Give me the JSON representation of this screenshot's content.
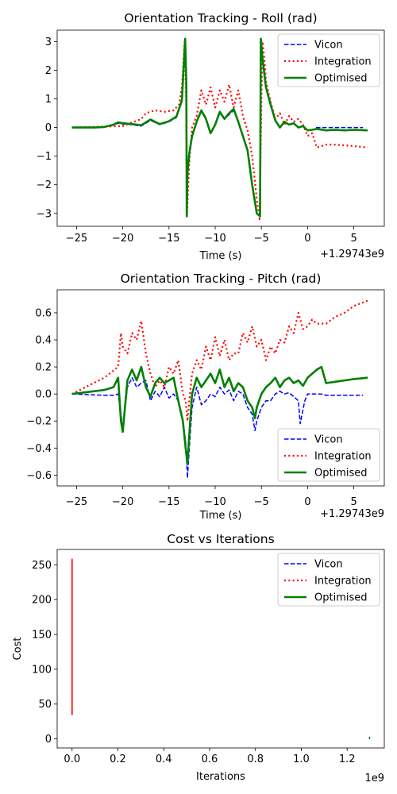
{
  "chart_data": [
    {
      "type": "line",
      "title": "Orientation Tracking - Roll (rad)",
      "xlabel": "Time (s)",
      "ylabel": "",
      "offset_text": "+1.29743e9",
      "xlim": [
        -27.1,
        8.3
      ],
      "ylim": [
        -3.45,
        3.4
      ],
      "xticks": [
        -25,
        -20,
        -15,
        -10,
        -5,
        0,
        5
      ],
      "xtick_labels": [
        "−25",
        "−20",
        "−15",
        "−10",
        "−5",
        "0",
        "5"
      ],
      "yticks": [
        -3,
        -2,
        -1,
        0,
        1,
        2,
        3
      ],
      "ytick_labels": [
        "−3",
        "−2",
        "−1",
        "0",
        "1",
        "2",
        "3"
      ],
      "legend_position": "top-right",
      "series": [
        {
          "name": "Vicon",
          "color": "#0000ff",
          "style": "dashed",
          "x": [
            -25.5,
            -23,
            -22,
            -21,
            -20.5,
            -20,
            -19,
            -18,
            -17,
            -16,
            -15,
            -14.2,
            -13.6,
            -13.25,
            -13.12,
            -13.08,
            -13.0,
            -12.8,
            -12.5,
            -12,
            -11.5,
            -11,
            -10.5,
            -10,
            -9.5,
            -9,
            -8.5,
            -8,
            -7.5,
            -7,
            -6.5,
            -6,
            -5.5,
            -5.15,
            -5.06,
            -5.0,
            -4.8,
            -4.5,
            -4,
            -3.5,
            -3,
            -2.5,
            -2,
            -1.5,
            -1,
            -0.5,
            0,
            0.5,
            1,
            2,
            3,
            4,
            5,
            6
          ],
          "y": [
            0,
            0,
            0.02,
            0.08,
            0.15,
            0.12,
            0.1,
            0.05,
            0.25,
            0.1,
            0.2,
            0.35,
            0.9,
            3.05,
            1.5,
            -3.1,
            -1.6,
            -0.9,
            -0.3,
            0.2,
            0.55,
            0.3,
            -0.2,
            0.1,
            0.5,
            0.3,
            0.45,
            0.6,
            0.2,
            -0.3,
            -0.8,
            -2.0,
            -3.0,
            -3.1,
            3.1,
            2.8,
            2.2,
            1.4,
            0.8,
            0.25,
            0.0,
            0.2,
            0.1,
            0.15,
            0.0,
            0.05,
            -0.1,
            -0.08,
            0.0,
            0.0,
            0.0,
            0.0,
            0.0,
            0.0
          ]
        },
        {
          "name": "Integration",
          "color": "#ff0000",
          "style": "dotted",
          "x": [
            -25.5,
            -20,
            -18,
            -17.5,
            -16.5,
            -15.5,
            -14.5,
            -13.9,
            -13.6,
            -13.3,
            -13.15,
            -13.05,
            -12.8,
            -12.5,
            -12,
            -11.5,
            -11,
            -10.5,
            -10,
            -9.5,
            -9,
            -8.5,
            -8,
            -7.5,
            -7,
            -6.5,
            -6,
            -5.5,
            -5.2,
            -4.9,
            -4.7,
            -4.5,
            -4,
            -3.5,
            -3,
            -2.5,
            -2,
            -1.5,
            -1,
            -0.5,
            0,
            0.5,
            1,
            2,
            3,
            4,
            5,
            6.5
          ],
          "y": [
            0,
            0.05,
            0.3,
            0.5,
            0.6,
            0.55,
            0.6,
            0.8,
            1.4,
            3.0,
            1.0,
            -3.05,
            -1.2,
            0.0,
            0.4,
            1.3,
            0.8,
            1.4,
            0.7,
            1.3,
            0.9,
            1.5,
            0.7,
            1.3,
            0.4,
            -0.1,
            -1.0,
            -2.5,
            -3.2,
            3.0,
            2.5,
            1.6,
            0.9,
            0.3,
            0.5,
            0.1,
            0.4,
            0.2,
            0.3,
            0.1,
            -0.3,
            -0.2,
            -0.7,
            -0.6,
            -0.6,
            -0.62,
            -0.65,
            -0.7
          ]
        },
        {
          "name": "Optimised",
          "color": "#008000",
          "style": "solid",
          "x": [
            -25.5,
            -23,
            -22,
            -21,
            -20.5,
            -20,
            -19,
            -18,
            -17,
            -16,
            -15,
            -14.2,
            -13.6,
            -13.25,
            -13.12,
            -13.08,
            -13.0,
            -12.8,
            -12.5,
            -12,
            -11.5,
            -11,
            -10.5,
            -10,
            -9.5,
            -9,
            -8.5,
            -8,
            -7.5,
            -7,
            -6.5,
            -6,
            -5.5,
            -5.15,
            -5.06,
            -5.0,
            -4.8,
            -4.5,
            -4,
            -3.5,
            -3,
            -2.5,
            -2,
            -1.5,
            -1,
            -0.5,
            0,
            0.5,
            1,
            2,
            3,
            4,
            5,
            6.5
          ],
          "y": [
            0,
            0,
            0.02,
            0.1,
            0.18,
            0.15,
            0.12,
            0.08,
            0.28,
            0.12,
            0.22,
            0.38,
            0.95,
            3.1,
            1.5,
            -3.1,
            -1.6,
            -0.9,
            -0.3,
            0.2,
            0.6,
            0.3,
            -0.2,
            0.1,
            0.55,
            0.3,
            0.5,
            0.65,
            0.2,
            -0.3,
            -0.8,
            -2.0,
            -3.0,
            -3.1,
            3.1,
            2.8,
            2.2,
            1.4,
            0.8,
            0.25,
            0.0,
            0.2,
            0.1,
            0.15,
            0.0,
            0.05,
            -0.1,
            -0.08,
            -0.05,
            -0.1,
            -0.08,
            -0.1,
            -0.08,
            -0.1
          ]
        }
      ]
    },
    {
      "type": "line",
      "title": "Orientation Tracking - Pitch (rad)",
      "xlabel": "Time (s)",
      "ylabel": "",
      "offset_text": "+1.29743e9",
      "xlim": [
        -27.1,
        8.3
      ],
      "ylim": [
        -0.68,
        0.77
      ],
      "xticks": [
        -25,
        -20,
        -15,
        -10,
        -5,
        0,
        5
      ],
      "xtick_labels": [
        "−25",
        "−20",
        "−15",
        "−10",
        "−5",
        "0",
        "5"
      ],
      "yticks": [
        -0.6,
        -0.4,
        -0.2,
        0.0,
        0.2,
        0.4,
        0.6
      ],
      "ytick_labels": [
        "−0.6",
        "−0.4",
        "−0.2",
        "0.0",
        "0.2",
        "0.4",
        "0.6"
      ],
      "legend_position": "bottom-right",
      "series": [
        {
          "name": "Vicon",
          "color": "#0000ff",
          "style": "dashed",
          "x": [
            -25.5,
            -22,
            -21,
            -20.5,
            -20.2,
            -20,
            -19.5,
            -19,
            -18.5,
            -18,
            -17.5,
            -17,
            -16.5,
            -16,
            -15.5,
            -15,
            -14.5,
            -14,
            -13.5,
            -13.2,
            -13,
            -12.8,
            -12.5,
            -12,
            -11.5,
            -11,
            -10.5,
            -10,
            -9.5,
            -9,
            -8.5,
            -8,
            -7.5,
            -7,
            -6.5,
            -6,
            -5.7,
            -5.5,
            -5,
            -4.5,
            -4,
            -3.5,
            -3,
            -2.5,
            -2,
            -1.5,
            -1,
            -0.8,
            -0.6,
            -0.3,
            0,
            0.5,
            1,
            1.5,
            2,
            3,
            4,
            5,
            6
          ],
          "y": [
            0,
            -0.01,
            -0.01,
            0.0,
            -0.15,
            -0.25,
            0.05,
            0.12,
            0.05,
            0.08,
            0.1,
            -0.05,
            0.02,
            -0.02,
            0.05,
            -0.03,
            0.0,
            -0.05,
            -0.2,
            -0.35,
            -0.62,
            -0.4,
            -0.1,
            0.05,
            -0.08,
            -0.05,
            0.0,
            -0.02,
            0.05,
            0.0,
            0.03,
            -0.05,
            0.02,
            0.0,
            -0.1,
            -0.15,
            -0.27,
            -0.2,
            -0.1,
            -0.05,
            -0.05,
            0.0,
            0.02,
            0.0,
            0.01,
            -0.02,
            -0.05,
            -0.22,
            -0.15,
            -0.05,
            0.0,
            0.0,
            0.0,
            0.0,
            -0.01,
            -0.01,
            -0.01,
            -0.01,
            -0.01
          ]
        },
        {
          "name": "Integration",
          "color": "#ff0000",
          "style": "dotted",
          "x": [
            -25.5,
            -22,
            -20.5,
            -20.2,
            -20,
            -19.5,
            -19,
            -18.5,
            -18,
            -17.5,
            -17,
            -16.5,
            -16,
            -15.5,
            -15,
            -14.5,
            -14,
            -13.5,
            -13.2,
            -13,
            -12.8,
            -12.5,
            -12,
            -11.5,
            -11,
            -10.5,
            -10,
            -9.5,
            -9,
            -8.5,
            -8,
            -7.5,
            -7,
            -6.5,
            -6,
            -5.5,
            -5,
            -4.5,
            -4,
            -3.5,
            -3,
            -2.5,
            -2,
            -1.5,
            -1,
            -0.5,
            0,
            0.5,
            1,
            2,
            3,
            4,
            5,
            6.5
          ],
          "y": [
            0,
            0.12,
            0.2,
            0.45,
            0.35,
            0.3,
            0.45,
            0.4,
            0.54,
            0.3,
            0.15,
            0.05,
            0.1,
            0.05,
            0.2,
            0.15,
            0.25,
            0.0,
            -0.05,
            -0.2,
            -0.05,
            0.15,
            0.25,
            0.18,
            0.35,
            0.25,
            0.42,
            0.28,
            0.4,
            0.25,
            0.3,
            0.3,
            0.45,
            0.38,
            0.5,
            0.35,
            0.4,
            0.25,
            0.35,
            0.3,
            0.4,
            0.38,
            0.5,
            0.45,
            0.6,
            0.48,
            0.5,
            0.55,
            0.52,
            0.52,
            0.57,
            0.6,
            0.65,
            0.69
          ]
        },
        {
          "name": "Optimised",
          "color": "#008000",
          "style": "solid",
          "x": [
            -25.5,
            -22,
            -21,
            -20.5,
            -20.2,
            -20,
            -19.5,
            -19,
            -18.5,
            -18,
            -17.5,
            -17,
            -16.5,
            -16,
            -15.5,
            -15,
            -14.5,
            -14,
            -13.5,
            -13.2,
            -13,
            -12.8,
            -12.5,
            -12,
            -11.5,
            -11,
            -10.5,
            -10,
            -9.5,
            -9,
            -8.5,
            -8,
            -7.5,
            -7,
            -6.5,
            -6,
            -5.7,
            -5.5,
            -5,
            -4.5,
            -4,
            -3.5,
            -3,
            -2.5,
            -2,
            -1.5,
            -1,
            -0.5,
            0,
            0.5,
            1,
            1.5,
            2,
            3,
            4,
            5,
            6.5
          ],
          "y": [
            0,
            0.03,
            0.05,
            0.12,
            -0.2,
            -0.28,
            0.1,
            0.18,
            0.1,
            0.2,
            0.05,
            -0.02,
            0.08,
            0.12,
            0.08,
            0.1,
            0.12,
            -0.05,
            -0.2,
            -0.4,
            -0.52,
            -0.3,
            0.0,
            0.12,
            0.05,
            0.1,
            0.15,
            0.08,
            0.18,
            0.05,
            0.12,
            0.02,
            0.08,
            0.05,
            -0.05,
            -0.1,
            -0.18,
            -0.1,
            0.0,
            0.05,
            0.08,
            0.12,
            0.05,
            0.1,
            0.12,
            0.08,
            0.1,
            0.06,
            0.12,
            0.15,
            0.18,
            0.2,
            0.08,
            0.09,
            0.1,
            0.11,
            0.12
          ]
        }
      ]
    },
    {
      "type": "line",
      "title": "Cost vs Iterations",
      "xlabel": "Iterations",
      "ylabel": "Cost",
      "offset_text": "1e9",
      "xlim": [
        -65000000,
        1362000000
      ],
      "ylim": [
        -13,
        272
      ],
      "xticks": [
        0,
        200000000,
        400000000,
        600000000,
        800000000,
        1000000000,
        1200000000
      ],
      "xtick_labels": [
        "0.0",
        "0.2",
        "0.4",
        "0.6",
        "0.8",
        "1.0",
        "1.2"
      ],
      "yticks": [
        0,
        50,
        100,
        150,
        200,
        250
      ],
      "ytick_labels": [
        "0",
        "50",
        "100",
        "150",
        "200",
        "250"
      ],
      "legend_position": "top-right",
      "legend": [
        {
          "name": "Vicon",
          "color": "#0000ff",
          "style": "dashed"
        },
        {
          "name": "Integration",
          "color": "#ff0000",
          "style": "dotted"
        },
        {
          "name": "Optimised",
          "color": "#008000",
          "style": "solid"
        }
      ],
      "series": [
        {
          "color": "#ff0000",
          "style": "solid",
          "x": [
            0,
            0
          ],
          "y": [
            35,
            258
          ]
        },
        {
          "color": "#008000",
          "style": "solid",
          "x": [
            1297429990,
            1297430000
          ],
          "y": [
            0.5,
            2.5
          ]
        }
      ]
    }
  ]
}
